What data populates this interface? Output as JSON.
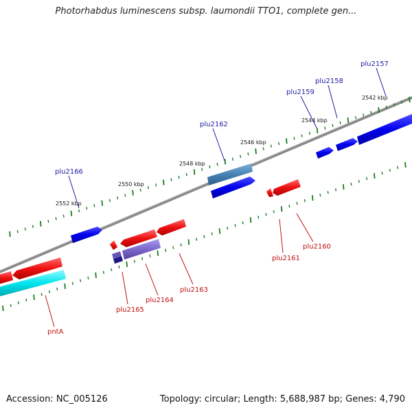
{
  "title": "Photorhabdus luminescens subsp. laumondii TTO1, complete gen...",
  "footer": {
    "accession": "Accession: NC_005126",
    "summary": "Topology: circular; Length: 5,688,987 bp; Genes: 4,790"
  },
  "colors": {
    "backbone": "#808080",
    "tick": "#1a7a1a",
    "forward_gene": "#0000ee",
    "forward_gene_alt": "#4682b4",
    "reverse_gene": "#ee1111",
    "reverse_gene_alt": "#7b68c8",
    "reverse_gene_dark": "#1a1a80",
    "cyan_gene": "#00e5ee",
    "forward_label": "#1a1aa0",
    "reverse_label": "#c01010"
  },
  "tick_labels": {
    "t2542": "2542 kbp",
    "t2544": "2544 kbp",
    "t2546": "2546 kbp",
    "t2548": "2548 kbp",
    "t2550": "2550 kbp",
    "t2552": "2552 kbp"
  },
  "forward_labels": {
    "plu2157": "plu2157",
    "plu2158": "plu2158",
    "plu2159": "plu2159",
    "plu2162": "plu2162",
    "plu2166": "plu2166"
  },
  "reverse_labels": {
    "plu2160": "plu2160",
    "plu2161": "plu2161",
    "plu2163": "plu2163",
    "plu2164": "plu2164",
    "plu2165": "plu2165",
    "pntA": "pntA"
  }
}
